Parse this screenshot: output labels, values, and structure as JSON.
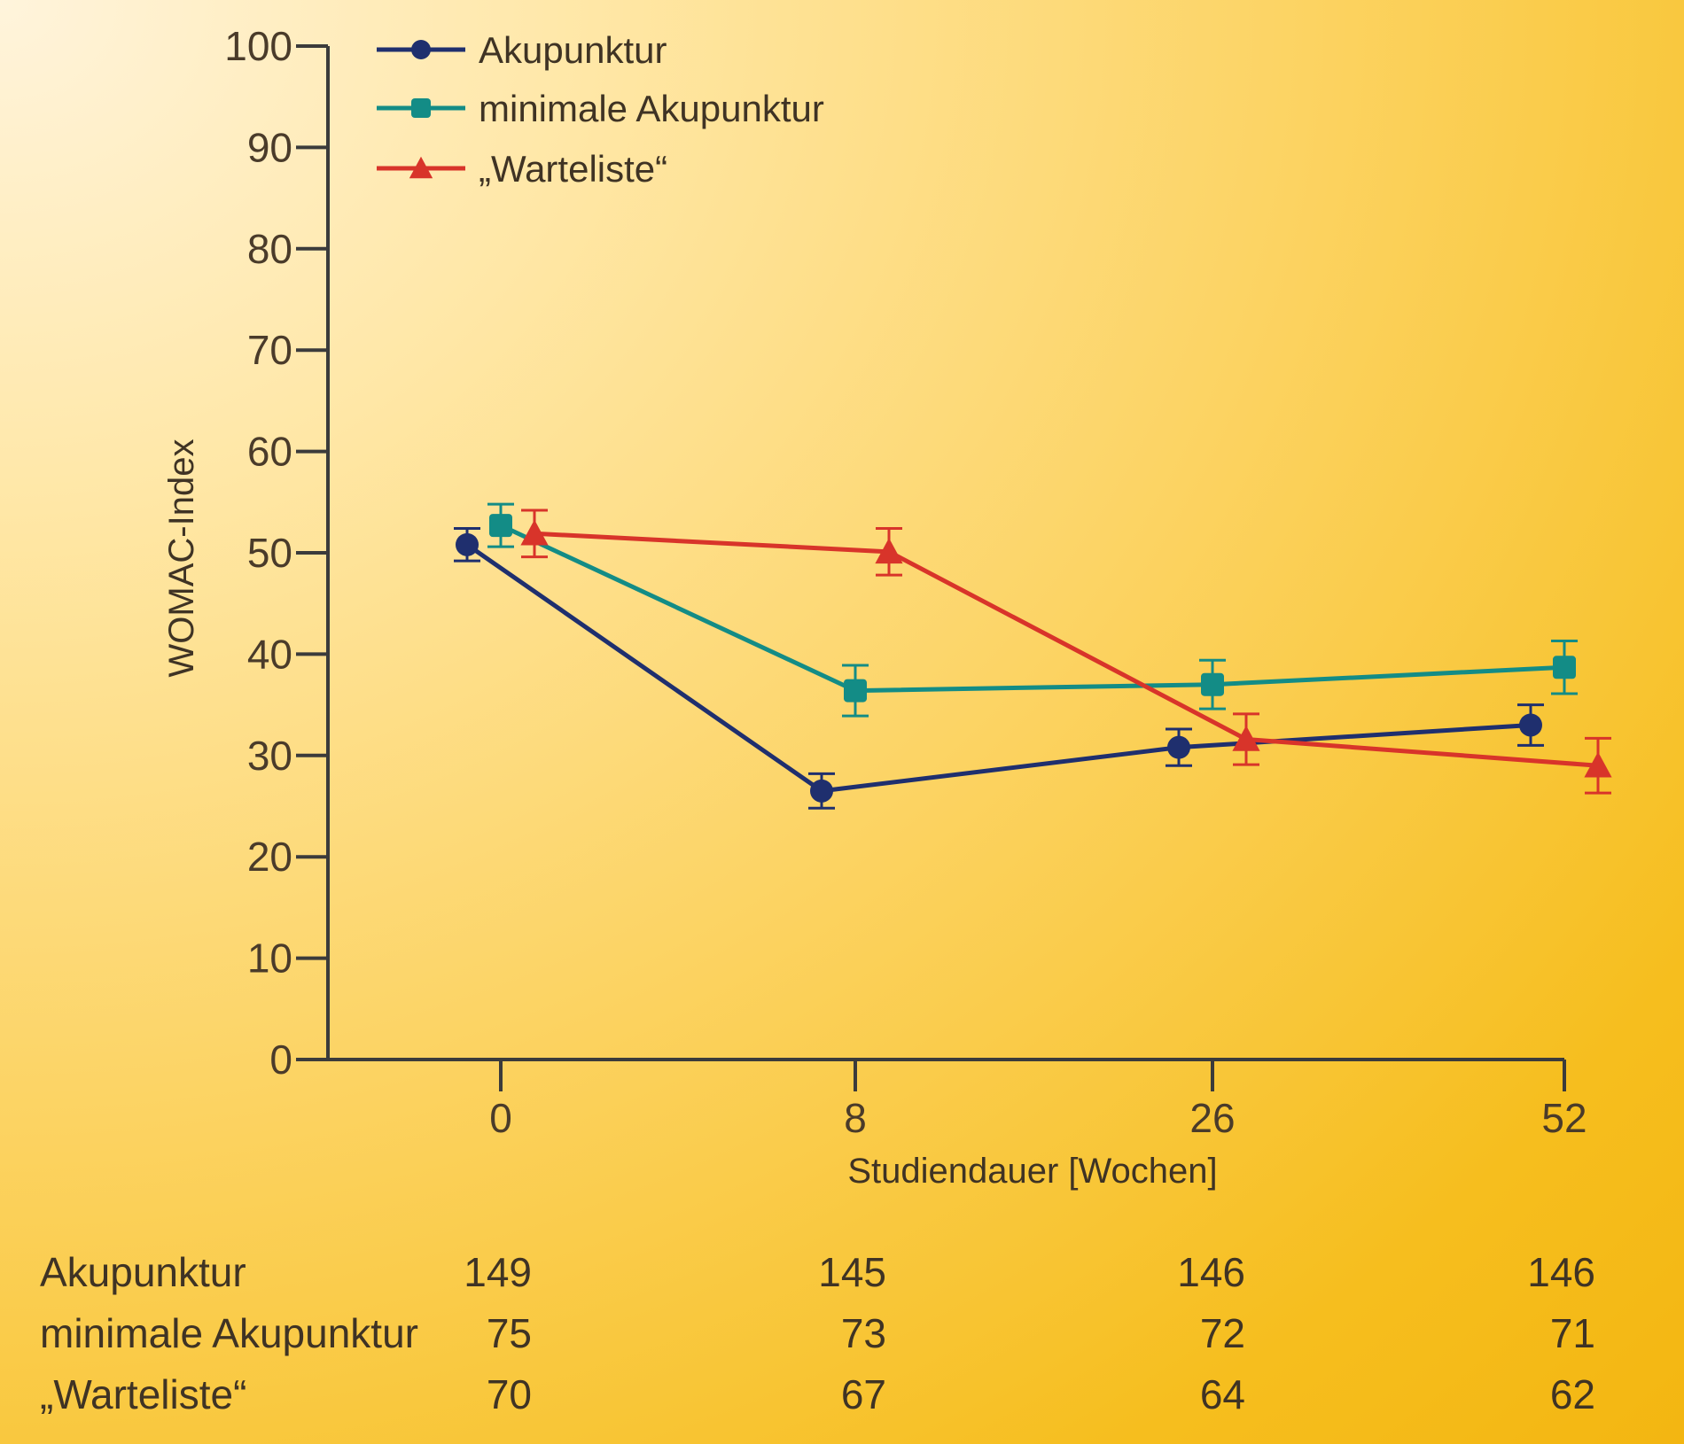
{
  "chart_data": {
    "type": "line",
    "title": "",
    "ylabel": "WOMAC-Index",
    "xlabel": "Studiendauer [Wochen]",
    "ylim": [
      0,
      100
    ],
    "y_ticks": [
      "0",
      "10",
      "20",
      "30",
      "40",
      "50",
      "60",
      "70",
      "80",
      "90",
      "100"
    ],
    "x": [
      "0",
      "8",
      "26",
      "52"
    ],
    "legend_position": "top-left",
    "grid": false,
    "series": [
      {
        "name": "Akupunktur",
        "marker": "circle",
        "color": "#1f2f6e",
        "values": [
          50.8,
          26.5,
          30.8,
          33.0
        ],
        "error": [
          1.6,
          1.7,
          1.8,
          2.0
        ]
      },
      {
        "name": "minimale Akupunktur",
        "marker": "square",
        "color": "#138c86",
        "values": [
          52.7,
          36.4,
          37.0,
          38.7
        ],
        "error": [
          2.1,
          2.5,
          2.4,
          2.6
        ]
      },
      {
        "name": "„Warteliste“",
        "marker": "triangle",
        "color": "#d8342a",
        "values": [
          51.9,
          50.1,
          31.6,
          29.0
        ],
        "error": [
          2.3,
          2.3,
          2.5,
          2.7
        ]
      }
    ]
  },
  "n_table": {
    "rows": [
      {
        "label": "Akupunktur",
        "values": [
          "149",
          "145",
          "146",
          "146"
        ]
      },
      {
        "label": "minimale Akupunktur",
        "values": [
          "75",
          "73",
          "72",
          "71"
        ]
      },
      {
        "label": "„Warteliste“",
        "values": [
          "70",
          "67",
          "64",
          "62"
        ]
      }
    ]
  }
}
